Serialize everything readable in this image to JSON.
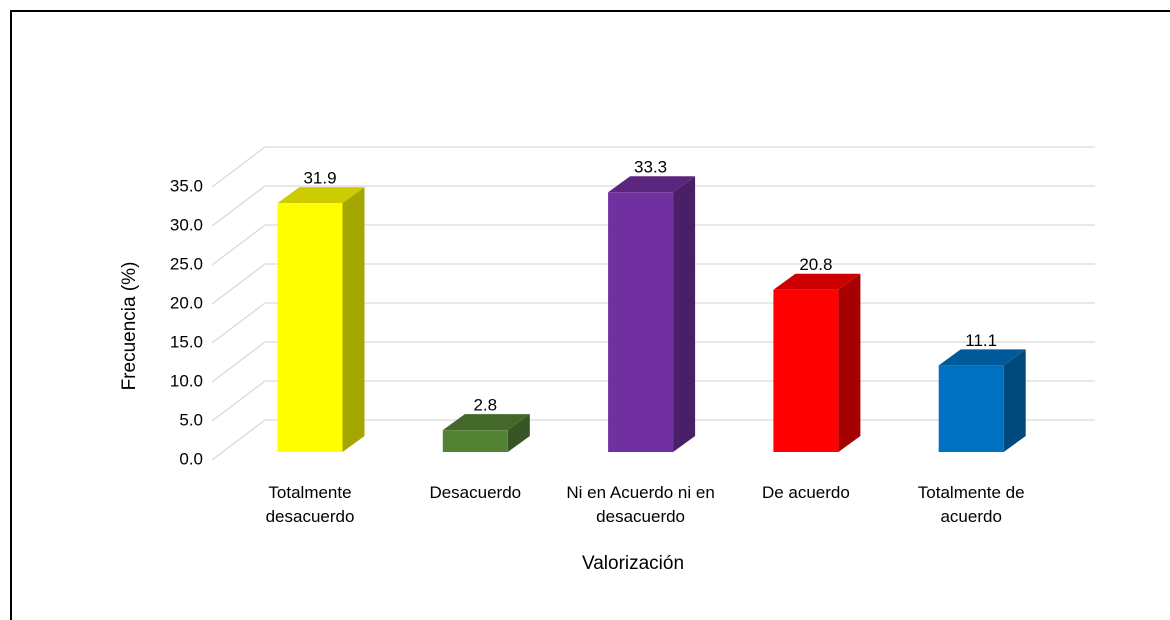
{
  "chart_data": {
    "type": "bar3d",
    "y_label": "Frecuencia (%)",
    "x_label": "Valorización",
    "categories": [
      "Totalmente desacuerdo",
      "Desacuerdo",
      "Ni en Acuerdo ni en desacuerdo",
      "De acuerdo",
      "Totalmente de acuerdo"
    ],
    "values": [
      31.9,
      2.8,
      33.3,
      20.8,
      11.1
    ],
    "colors": [
      "#ffff00",
      "#548235",
      "#7030a0",
      "#ff0000",
      "#0070c0"
    ],
    "ylim": [
      0,
      35
    ],
    "yticks": [
      {
        "value": 0,
        "label": "0.0"
      },
      {
        "value": 5,
        "label": "5.0"
      },
      {
        "value": 10,
        "label": "10.0"
      },
      {
        "value": 15,
        "label": "15.0"
      },
      {
        "value": 20,
        "label": "20.0"
      },
      {
        "value": 25,
        "label": "25.0"
      },
      {
        "value": 30,
        "label": "30.0"
      },
      {
        "value": 35,
        "label": "35.0"
      }
    ],
    "grid": true
  }
}
